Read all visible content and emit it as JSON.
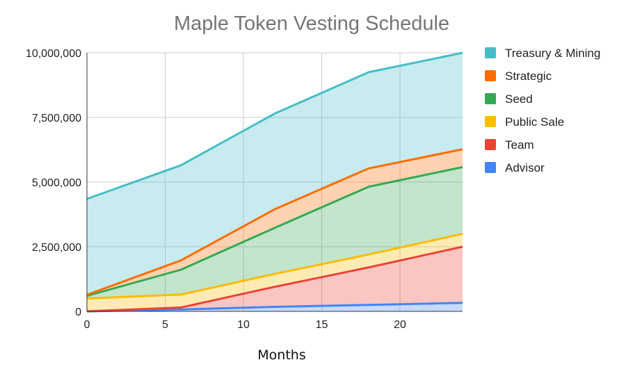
{
  "chart_data": {
    "type": "area",
    "stacked": true,
    "title": "Maple Token Vesting Schedule",
    "xlabel": "Months",
    "ylabel": "",
    "xlim": [
      0,
      24
    ],
    "ylim": [
      0,
      10000000
    ],
    "x_ticks": [
      0,
      5,
      10,
      15,
      20
    ],
    "y_ticks": [
      0,
      2500000,
      5000000,
      7500000,
      10000000
    ],
    "y_tick_labels": [
      "0",
      "2,500,000",
      "5,000,000",
      "7,500,000",
      "10,000,000"
    ],
    "grid": true,
    "legend_position": "right",
    "x": [
      0,
      6,
      12,
      18,
      24
    ],
    "series": [
      {
        "name": "Advisor",
        "color": "#4285f4",
        "values": [
          0,
          75000,
          175000,
          250000,
          330000
        ]
      },
      {
        "name": "Team",
        "color": "#ea4335",
        "values": [
          0,
          75000,
          775000,
          1450000,
          2170000
        ]
      },
      {
        "name": "Public Sale",
        "color": "#fbbc04",
        "values": [
          500000,
          500000,
          500000,
          500000,
          500000
        ]
      },
      {
        "name": "Seed",
        "color": "#34a853",
        "values": [
          100000,
          960000,
          1780000,
          2620000,
          2580000
        ]
      },
      {
        "name": "Strategic",
        "color": "#ff6d01",
        "values": [
          40000,
          360000,
          720000,
          710000,
          690000
        ]
      },
      {
        "name": "Treasury & Mining",
        "color": "#46bdc6",
        "values": [
          3710000,
          3680000,
          3700000,
          3720000,
          3730000
        ]
      }
    ]
  }
}
